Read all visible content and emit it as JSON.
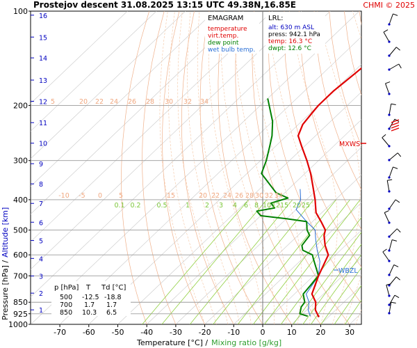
{
  "header": {
    "title": "Prostejov   descent   31.08.2025 13:15 UTC  49.38N,16.85E",
    "credit": "CHMI © 2025"
  },
  "legend": {
    "heading": "EMAGRAM",
    "items": [
      {
        "label": "temperature",
        "color": "#e00000"
      },
      {
        "label": "virt.temp.",
        "color": "#e00000"
      },
      {
        "label": "dew point",
        "color": "#008000"
      },
      {
        "label": "wet bulb temp.",
        "color": "#2a6fd6"
      }
    ]
  },
  "lrl": {
    "heading": "LRL:",
    "alt": "alt: 630 m ASL",
    "press": "press: 942.1 hPa",
    "temp": "temp: 16.3 °C",
    "dwpt": "dwpt: 12.6 °C",
    "colors": {
      "alt": "#0000c0",
      "press": "#000000",
      "temp": "#e00000",
      "dwpt": "#008000"
    }
  },
  "markers": {
    "mxws": "MXWS",
    "wbzl": "WBZL",
    "mxws_color": "#e00000",
    "wbzl_color": "#2a6fd6"
  },
  "table": {
    "headers": [
      "p [hPa]",
      "T",
      "Td [°C]"
    ],
    "rows": [
      [
        "500",
        "-12.5",
        "-18.8"
      ],
      [
        "700",
        "1.7",
        "1.7"
      ],
      [
        "850",
        "10.3",
        "6.5"
      ]
    ]
  },
  "axes": {
    "ylabel_left": "Pressure [hPa]  /",
    "ylabel_right": "Altitude [km]",
    "xlabel_left": "Temperature [°C]  /",
    "xlabel_right": "Mixing ratio [g/kg]"
  },
  "chart_data": {
    "type": "line",
    "title": "Prostejov   descent   31.08.2025 13:15 UTC  49.38N,16.85E",
    "xlabel": "Temperature [°C] / Mixing ratio [g/kg]",
    "ylabel": "Pressure [hPa] / Altitude [km]",
    "y_scale": "log",
    "ylim": [
      1000,
      100
    ],
    "xlim": [
      -80,
      38
    ],
    "skew": "temperature isotherms slanted (skew-T emagram)",
    "x_ticks": [
      -70,
      -60,
      -50,
      -40,
      -30,
      -20,
      -10,
      0,
      10,
      20,
      30
    ],
    "pressure_ticks": [
      100,
      200,
      300,
      400,
      500,
      600,
      700,
      850,
      925,
      1000
    ],
    "pressure_grid": [
      200,
      300,
      400,
      500,
      600,
      700,
      850,
      925
    ],
    "altitude_ticks_km": [
      1,
      2,
      3,
      4,
      5,
      6,
      7,
      8,
      9,
      10,
      11,
      12,
      13,
      14,
      15,
      16
    ],
    "altitude_pressure_hpa": [
      899,
      795,
      701,
      616,
      540,
      472,
      411,
      356,
      307,
      264,
      227,
      194,
      166,
      141,
      121,
      103
    ],
    "mixing_ratio_labels": [
      "0.1",
      "0.2",
      "0.5",
      "1",
      "2",
      "3",
      "4",
      "6",
      "8",
      "10",
      "12",
      "15",
      "20",
      "25"
    ],
    "adiabat_labels_upper": [
      "20",
      "22",
      "24",
      "26",
      "28",
      "30",
      "32",
      "34"
    ],
    "adiabat_labels_upper_2": [
      "-10",
      "-5",
      "0",
      "5",
      "15",
      "20",
      "22",
      "24",
      "26",
      "28",
      "30",
      "32",
      "34"
    ],
    "adiabat_labels_top": [
      "5",
      "20",
      "22",
      "24",
      "26",
      "28",
      "30",
      "32",
      "34"
    ],
    "lrl_level_hpa": 942.1,
    "mxws_level_hpa": 253,
    "wbzl_level_hpa": 680,
    "series": [
      {
        "name": "temperature",
        "color": "#e00000",
        "points": [
          [
            16.3,
            942
          ],
          [
            13,
            900
          ],
          [
            10.3,
            850
          ],
          [
            6,
            800
          ],
          [
            1.7,
            700
          ],
          [
            -2.5,
            600
          ],
          [
            -7,
            560
          ],
          [
            -11,
            520
          ],
          [
            -12.5,
            500
          ],
          [
            -17,
            470
          ],
          [
            -22,
            440
          ],
          [
            -27,
            400
          ],
          [
            -33,
            360
          ],
          [
            -38,
            330
          ],
          [
            -44,
            300
          ],
          [
            -51,
            270
          ],
          [
            -56,
            250
          ],
          [
            -58.5,
            230
          ],
          [
            -59.5,
            210
          ],
          [
            -60,
            200
          ],
          [
            -60,
            180
          ],
          [
            -59,
            160
          ],
          [
            -58.5,
            150
          ],
          [
            -59,
            140
          ],
          [
            -60,
            120
          ],
          [
            -60.5,
            110
          ],
          [
            -61,
            100
          ]
        ]
      },
      {
        "name": "dew point",
        "color": "#008000",
        "points": [
          [
            12.6,
            942
          ],
          [
            9,
            925
          ],
          [
            7,
            880
          ],
          [
            6.5,
            850
          ],
          [
            3,
            800
          ],
          [
            1.7,
            700
          ],
          [
            -3,
            650
          ],
          [
            -6,
            620
          ],
          [
            -8,
            600
          ],
          [
            -13,
            580
          ],
          [
            -15,
            560
          ],
          [
            -16,
            520
          ],
          [
            -18.8,
            500
          ],
          [
            -22,
            470
          ],
          [
            -30,
            460
          ],
          [
            -40,
            450
          ],
          [
            -43,
            435
          ],
          [
            -38,
            425
          ],
          [
            -41,
            410
          ],
          [
            -37,
            395
          ],
          [
            -41,
            385
          ],
          [
            -43,
            380
          ],
          [
            -55,
            330
          ],
          [
            -58,
            300
          ],
          [
            -62,
            270
          ],
          [
            -65,
            250
          ],
          [
            -70,
            225
          ],
          [
            -80,
            190
          ]
        ]
      },
      {
        "name": "wet bulb temp.",
        "color": "#2a6fd6",
        "points": [
          [
            13.5,
            942
          ],
          [
            10.5,
            900
          ],
          [
            8,
            850
          ],
          [
            4,
            800
          ],
          [
            1.7,
            700
          ],
          [
            -3,
            630
          ],
          [
            -8,
            580
          ],
          [
            -12,
            540
          ],
          [
            -14,
            520
          ],
          [
            -16,
            500
          ],
          [
            -22,
            470
          ],
          [
            -30,
            430
          ],
          [
            -32,
            400
          ],
          [
            -36,
            370
          ]
        ]
      }
    ]
  }
}
